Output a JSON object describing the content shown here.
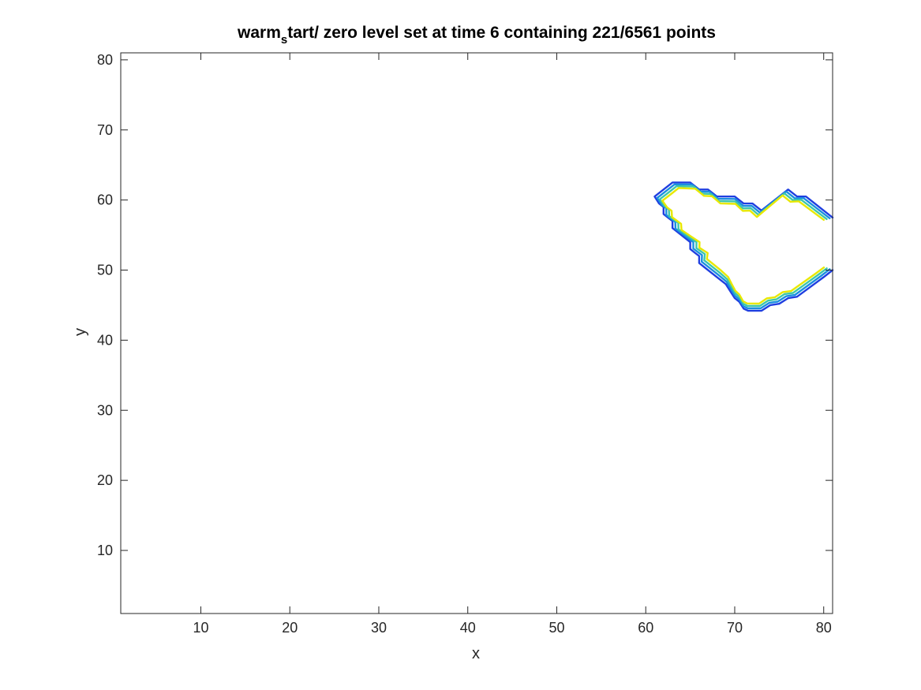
{
  "chart_data": {
    "type": "line",
    "title_pre": "warm",
    "title_sub": "s",
    "title_post": "tart/ zero level set at time 6 containing 221/6561 points",
    "xlabel": "x",
    "ylabel": "y",
    "xlim": [
      1,
      81
    ],
    "ylim": [
      1,
      81
    ],
    "xticks": [
      10,
      20,
      30,
      40,
      50,
      60,
      70,
      80
    ],
    "yticks": [
      10,
      20,
      30,
      40,
      50,
      60,
      70,
      80
    ],
    "xtick_labels": [
      "10",
      "20",
      "30",
      "40",
      "50",
      "60",
      "70",
      "80"
    ],
    "ytick_labels": [
      "10",
      "20",
      "30",
      "40",
      "50",
      "60",
      "70",
      "80"
    ],
    "grid": false,
    "box": true,
    "series": [
      {
        "color": "#1f3fe0",
        "inset": 0,
        "points": [
          [
            81,
            57.5
          ],
          [
            78,
            60.5
          ],
          [
            77,
            60.5
          ],
          [
            76,
            61.5
          ],
          [
            73,
            58.5
          ],
          [
            72,
            59.5
          ],
          [
            71,
            59.5
          ],
          [
            70,
            60.5
          ],
          [
            68,
            60.5
          ],
          [
            67,
            61.5
          ],
          [
            66,
            61.5
          ],
          [
            65,
            62.5
          ],
          [
            63,
            62.5
          ],
          [
            62,
            61.5
          ],
          [
            61,
            60.5
          ],
          [
            61.5,
            59.5
          ],
          [
            62,
            59
          ],
          [
            62,
            58
          ],
          [
            62.5,
            57.5
          ],
          [
            63,
            57
          ],
          [
            63,
            56
          ],
          [
            64,
            55
          ],
          [
            65,
            54
          ],
          [
            65,
            53
          ],
          [
            65.5,
            52.5
          ],
          [
            66,
            52
          ],
          [
            66,
            51
          ],
          [
            68,
            49
          ],
          [
            69,
            48
          ],
          [
            69.5,
            47
          ],
          [
            70,
            46
          ],
          [
            70.5,
            45.5
          ],
          [
            71,
            44.5
          ],
          [
            71.5,
            44.2
          ],
          [
            73,
            44.2
          ],
          [
            74,
            45
          ],
          [
            75,
            45.2
          ],
          [
            76,
            46
          ],
          [
            77,
            46.2
          ],
          [
            80,
            49
          ],
          [
            81,
            50
          ]
        ]
      },
      {
        "color": "#1a8fe0",
        "inset": 0.35,
        "points": [
          [
            81,
            57.5
          ],
          [
            78,
            60.5
          ],
          [
            77,
            60.5
          ],
          [
            76,
            61.5
          ],
          [
            73,
            58.5
          ],
          [
            72,
            59.5
          ],
          [
            71,
            59.5
          ],
          [
            70,
            60.5
          ],
          [
            68,
            60.5
          ],
          [
            67,
            61.5
          ],
          [
            66,
            61.5
          ],
          [
            65,
            62.5
          ],
          [
            63,
            62.5
          ],
          [
            62,
            61.5
          ],
          [
            61,
            60.5
          ],
          [
            61.5,
            59.5
          ],
          [
            62,
            59
          ],
          [
            62,
            58
          ],
          [
            62.5,
            57.5
          ],
          [
            63,
            57
          ],
          [
            63,
            56
          ],
          [
            64,
            55
          ],
          [
            65,
            54
          ],
          [
            65,
            53
          ],
          [
            65.5,
            52.5
          ],
          [
            66,
            52
          ],
          [
            66,
            51
          ],
          [
            68,
            49
          ],
          [
            69,
            48
          ],
          [
            69.5,
            47
          ],
          [
            70,
            46
          ],
          [
            70.5,
            45.5
          ],
          [
            71,
            44.5
          ],
          [
            71.5,
            44.2
          ],
          [
            73,
            44.2
          ],
          [
            74,
            45
          ],
          [
            75,
            45.2
          ],
          [
            76,
            46
          ],
          [
            77,
            46.2
          ],
          [
            80,
            49
          ],
          [
            81,
            50
          ]
        ]
      },
      {
        "color": "#3ec7a8",
        "inset": 0.7,
        "points": [
          [
            81,
            57.5
          ],
          [
            78,
            60.5
          ],
          [
            77,
            60.5
          ],
          [
            76,
            61.5
          ],
          [
            73,
            58.5
          ],
          [
            72,
            59.5
          ],
          [
            71,
            59.5
          ],
          [
            70,
            60.5
          ],
          [
            68,
            60.5
          ],
          [
            67,
            61.5
          ],
          [
            66,
            61.5
          ],
          [
            65,
            62.5
          ],
          [
            63,
            62.5
          ],
          [
            62,
            61.5
          ],
          [
            61,
            60.5
          ],
          [
            61.5,
            59.5
          ],
          [
            62,
            59
          ],
          [
            62,
            58
          ],
          [
            62.5,
            57.5
          ],
          [
            63,
            57
          ],
          [
            63,
            56
          ],
          [
            64,
            55
          ],
          [
            65,
            54
          ],
          [
            65,
            53
          ],
          [
            65.5,
            52.5
          ],
          [
            66,
            52
          ],
          [
            66,
            51
          ],
          [
            68,
            49
          ],
          [
            69,
            48
          ],
          [
            69.5,
            47
          ],
          [
            70,
            46
          ],
          [
            70.5,
            45.5
          ],
          [
            71,
            44.5
          ],
          [
            71.5,
            44.2
          ],
          [
            73,
            44.2
          ],
          [
            74,
            45
          ],
          [
            75,
            45.2
          ],
          [
            76,
            46
          ],
          [
            77,
            46.2
          ],
          [
            80,
            49
          ],
          [
            81,
            50
          ]
        ]
      },
      {
        "color": "#e8e800",
        "inset": 1.05,
        "points": [
          [
            81,
            57.5
          ],
          [
            78,
            60.5
          ],
          [
            77,
            60.5
          ],
          [
            76,
            61.5
          ],
          [
            73,
            58.5
          ],
          [
            72,
            59.5
          ],
          [
            71,
            59.5
          ],
          [
            70,
            60.5
          ],
          [
            68,
            60.5
          ],
          [
            67,
            61.5
          ],
          [
            66,
            61.5
          ],
          [
            65,
            62.5
          ],
          [
            63,
            62.5
          ],
          [
            62,
            61.5
          ],
          [
            61,
            60.5
          ],
          [
            61.5,
            59.5
          ],
          [
            62,
            59
          ],
          [
            62,
            58
          ],
          [
            62.5,
            57.5
          ],
          [
            63,
            57
          ],
          [
            63,
            56
          ],
          [
            64,
            55
          ],
          [
            65,
            54
          ],
          [
            65,
            53
          ],
          [
            65.5,
            52.5
          ],
          [
            66,
            52
          ],
          [
            66,
            51
          ],
          [
            68,
            49
          ],
          [
            69,
            48
          ],
          [
            69.5,
            47
          ],
          [
            70,
            46
          ],
          [
            70.5,
            45.5
          ],
          [
            71,
            44.5
          ],
          [
            71.5,
            44.2
          ],
          [
            73,
            44.2
          ],
          [
            74,
            45
          ],
          [
            75,
            45.2
          ],
          [
            76,
            46
          ],
          [
            77,
            46.2
          ],
          [
            80,
            49
          ],
          [
            81,
            50
          ]
        ]
      }
    ]
  }
}
